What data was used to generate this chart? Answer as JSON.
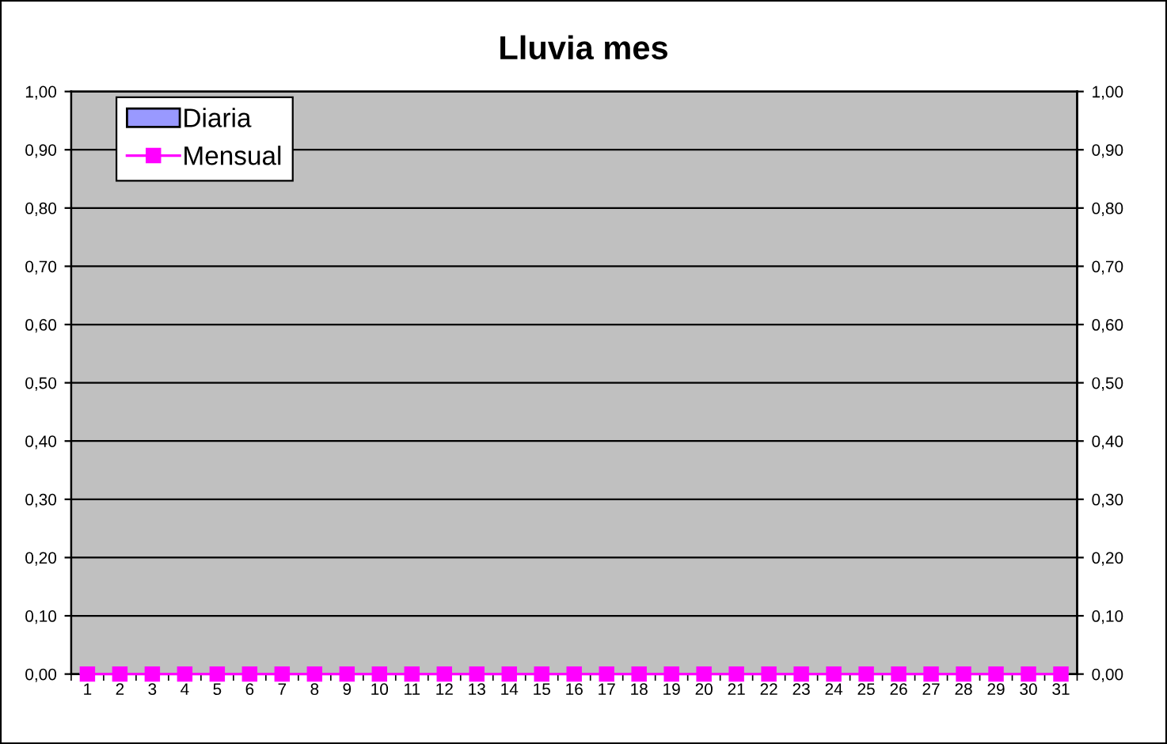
{
  "chart_data": {
    "type": "bar",
    "title": "Lluvia mes",
    "categories": [
      "1",
      "2",
      "3",
      "4",
      "5",
      "6",
      "7",
      "8",
      "9",
      "10",
      "11",
      "12",
      "13",
      "14",
      "15",
      "16",
      "17",
      "18",
      "19",
      "20",
      "21",
      "22",
      "23",
      "24",
      "25",
      "26",
      "27",
      "28",
      "29",
      "30",
      "31"
    ],
    "series": [
      {
        "name": "Diaria",
        "color": "#9999ff",
        "values": [
          0,
          0,
          0,
          0,
          0,
          0,
          0,
          0,
          0,
          0,
          0,
          0,
          0,
          0,
          0,
          0,
          0,
          0,
          0,
          0,
          0,
          0,
          0,
          0,
          0,
          0,
          0,
          0,
          0,
          0,
          0
        ]
      },
      {
        "name": "Mensual",
        "type": "line",
        "color": "#ff00ff",
        "values": [
          0,
          0,
          0,
          0,
          0,
          0,
          0,
          0,
          0,
          0,
          0,
          0,
          0,
          0,
          0,
          0,
          0,
          0,
          0,
          0,
          0,
          0,
          0,
          0,
          0,
          0,
          0,
          0,
          0,
          0,
          0
        ]
      }
    ],
    "ylim": [
      0,
      1
    ],
    "yticks": [
      {
        "value": 0,
        "label": "0,00"
      },
      {
        "value": 0.1,
        "label": "0,10"
      },
      {
        "value": 0.2,
        "label": "0,20"
      },
      {
        "value": 0.3,
        "label": "0,30"
      },
      {
        "value": 0.4,
        "label": "0,40"
      },
      {
        "value": 0.5,
        "label": "0,50"
      },
      {
        "value": 0.6,
        "label": "0,60"
      },
      {
        "value": 0.7,
        "label": "0,70"
      },
      {
        "value": 0.8,
        "label": "0,80"
      },
      {
        "value": 0.9,
        "label": "0,90"
      },
      {
        "value": 1,
        "label": "1,00"
      }
    ],
    "y2lim": [
      0,
      1
    ],
    "y2ticks": [
      {
        "value": 0,
        "label": "0,00"
      },
      {
        "value": 0.1,
        "label": "0,10"
      },
      {
        "value": 0.2,
        "label": "0,20"
      },
      {
        "value": 0.3,
        "label": "0,30"
      },
      {
        "value": 0.4,
        "label": "0,40"
      },
      {
        "value": 0.5,
        "label": "0,50"
      },
      {
        "value": 0.6,
        "label": "0,60"
      },
      {
        "value": 0.7,
        "label": "0,70"
      },
      {
        "value": 0.8,
        "label": "0,80"
      },
      {
        "value": 0.9,
        "label": "0,90"
      },
      {
        "value": 1,
        "label": "1,00"
      }
    ],
    "grid": "y",
    "legend": "top left",
    "marker": "square",
    "line_style": "solid"
  }
}
